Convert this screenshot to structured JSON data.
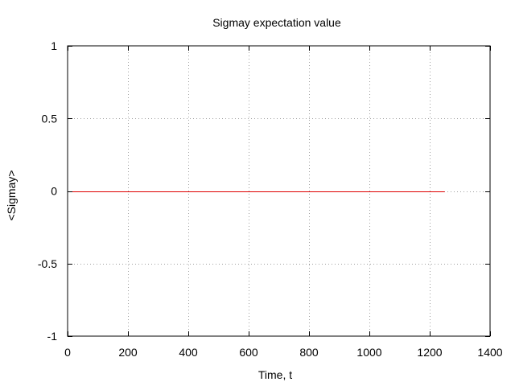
{
  "chart_data": {
    "type": "line",
    "title": "Sigmay expectation value",
    "xlabel": "Time, t",
    "ylabel": "<Sigmay>",
    "xlim": [
      0,
      1400
    ],
    "ylim": [
      -1,
      1
    ],
    "x_ticks": [
      0,
      200,
      400,
      600,
      800,
      1000,
      1200,
      1400
    ],
    "y_ticks": [
      -1,
      -0.5,
      0,
      0.5,
      1
    ],
    "x_tick_labels": [
      "0",
      "200",
      "400",
      "600",
      "800",
      "1000",
      "1200",
      "1400"
    ],
    "y_tick_labels": [
      "-1",
      "-0.5",
      "0",
      "0.5",
      "1"
    ],
    "grid": true,
    "legend": "none",
    "series": [
      {
        "color": "#e00000",
        "x": [
          0,
          1250
        ],
        "y": [
          0,
          0
        ]
      }
    ]
  }
}
